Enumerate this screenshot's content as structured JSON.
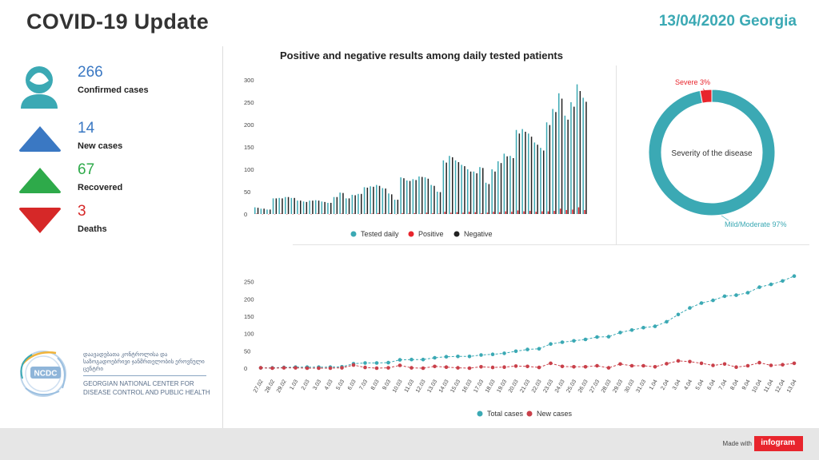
{
  "header": {
    "title": "COVID-19 Update",
    "date": "13/04/2020 Georgia"
  },
  "stats": [
    {
      "value": "266",
      "label": "Confirmed cases",
      "color": "#3a78c3"
    },
    {
      "value": "14",
      "label": "New cases",
      "color": "#3a78c3"
    },
    {
      "value": "67",
      "label": "Recovered",
      "color": "#2eaa4a"
    },
    {
      "value": "3",
      "label": "Deaths",
      "color": "#d62828"
    }
  ],
  "logo": {
    "abbr": "NCDC",
    "georgian": "დაავადებათა კონტროლისა და საზოგადოებრივი ჯანმრთელობის ეროვნული ცენტრი",
    "english": "GEORGIAN NATIONAL CENTER FOR DISEASE CONTROL AND PUBLIC HEALTH"
  },
  "footer": {
    "made_with": "Made with",
    "brand": "infogram"
  },
  "chart_data": [
    {
      "type": "bar",
      "title": "Positive and negative results among daily tested patients",
      "ylim": [
        0,
        300
      ],
      "yticks": [
        0,
        50,
        100,
        150,
        200,
        250,
        300
      ],
      "legend": [
        "Tested daily",
        "Positive",
        "Negative"
      ],
      "colors": [
        "#3ba9b4",
        "#e8252d",
        "#222222"
      ],
      "series": [
        {
          "name": "Tested daily",
          "values": [
            15,
            12,
            10,
            35,
            36,
            38,
            36,
            30,
            28,
            30,
            31,
            28,
            25,
            38,
            48,
            35,
            43,
            45,
            60,
            62,
            65,
            58,
            46,
            32,
            82,
            75,
            78,
            84,
            82,
            65,
            50,
            120,
            130,
            120,
            110,
            100,
            95,
            105,
            70,
            100,
            118,
            135,
            130,
            188,
            190,
            180,
            160,
            148,
            205,
            235,
            270,
            220,
            250,
            290,
            260
          ]
        },
        {
          "name": "Positive",
          "values": [
            1,
            0,
            0,
            0,
            1,
            0,
            0,
            0,
            1,
            0,
            1,
            1,
            0,
            0,
            1,
            0,
            1,
            0,
            1,
            1,
            2,
            1,
            2,
            0,
            2,
            1,
            2,
            1,
            3,
            2,
            1,
            5,
            3,
            4,
            3,
            5,
            4,
            2,
            3,
            5,
            4,
            6,
            5,
            8,
            6,
            7,
            5,
            6,
            6,
            7,
            12,
            9,
            10,
            15,
            9
          ]
        },
        {
          "name": "Negative",
          "values": [
            14,
            12,
            10,
            35,
            35,
            38,
            36,
            30,
            27,
            30,
            30,
            27,
            25,
            38,
            47,
            35,
            42,
            45,
            59,
            61,
            63,
            57,
            44,
            32,
            80,
            74,
            76,
            83,
            79,
            63,
            49,
            115,
            127,
            116,
            107,
            95,
            91,
            103,
            67,
            95,
            114,
            129,
            125,
            180,
            184,
            173,
            155,
            142,
            199,
            228,
            258,
            211,
            240,
            275,
            251
          ]
        }
      ]
    },
    {
      "type": "pie",
      "title": "Severity of the disease",
      "slices": [
        {
          "label": "Mild/Moderate 97%",
          "value": 97,
          "color": "#3ba9b4"
        },
        {
          "label": "Severe 3%",
          "value": 3,
          "color": "#e8252d"
        }
      ]
    },
    {
      "type": "line",
      "categories": [
        "27.02",
        "28.02",
        "29.02",
        "1.03",
        "2.03",
        "3.03",
        "4.03",
        "5.03",
        "6.03",
        "7.03",
        "8.03",
        "9.03",
        "10.03",
        "11.03",
        "12.03",
        "13.03",
        "14.03",
        "15.03",
        "16.03",
        "17.03",
        "18.03",
        "19.03",
        "20.03",
        "21.03",
        "22.03",
        "23.03",
        "24.03",
        "25.03",
        "26.03",
        "27.03",
        "28.03",
        "29.03",
        "30.03",
        "31.03",
        "1.04",
        "2.04",
        "3.04",
        "4.04",
        "5.04",
        "6.04",
        "7.04",
        "8.04",
        "9.04",
        "10.04",
        "11.04",
        "12.04",
        "13.04"
      ],
      "ylim": [
        0,
        270
      ],
      "yticks": [
        0,
        50,
        100,
        150,
        200,
        250
      ],
      "legend": [
        "Total cases",
        "New cases"
      ],
      "colors": [
        "#3ba9b4",
        "#c9404a"
      ],
      "series": [
        {
          "name": "Total cases",
          "values": [
            1,
            1,
            2,
            3,
            3,
            3,
            3,
            4,
            13,
            15,
            15,
            16,
            24,
            25,
            25,
            30,
            33,
            34,
            34,
            38,
            40,
            43,
            49,
            54,
            56,
            70,
            75,
            79,
            83,
            90,
            91,
            103,
            110,
            117,
            121,
            134,
            155,
            174,
            188,
            196,
            208,
            211,
            218,
            234,
            242,
            252,
            266
          ]
        },
        {
          "name": "New cases",
          "values": [
            1,
            0,
            1,
            1,
            0,
            0,
            0,
            1,
            9,
            2,
            0,
            1,
            8,
            1,
            0,
            5,
            3,
            1,
            0,
            4,
            2,
            3,
            6,
            5,
            2,
            14,
            5,
            4,
            4,
            7,
            1,
            12,
            7,
            7,
            4,
            13,
            21,
            19,
            14,
            8,
            12,
            3,
            7,
            16,
            8,
            10,
            14
          ]
        }
      ]
    }
  ]
}
